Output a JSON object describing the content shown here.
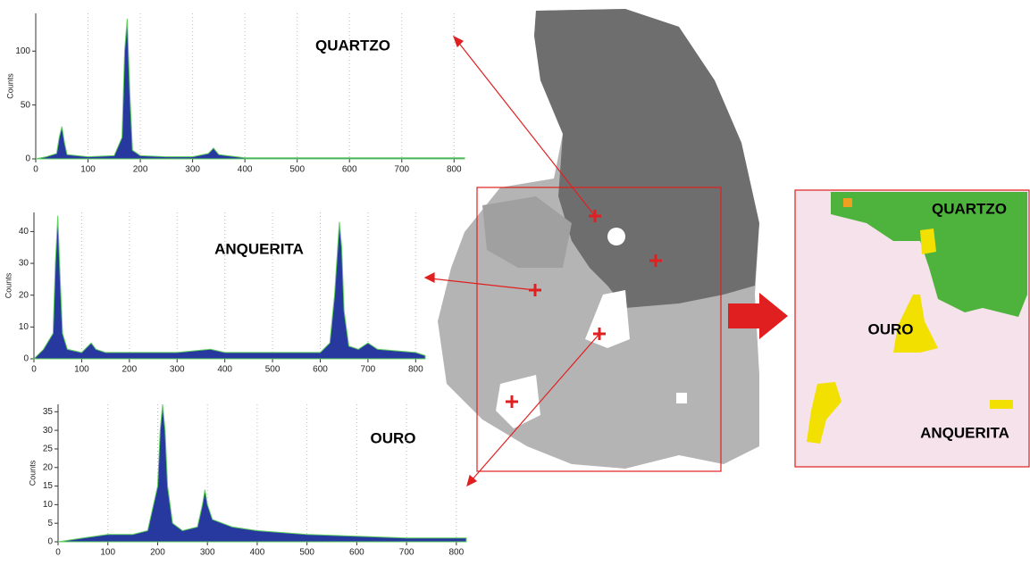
{
  "chart_data": [
    {
      "type": "area",
      "ylabel": "Counts",
      "color": "#27389e",
      "edge": "#5fcf5f",
      "grid": true,
      "x": [
        0,
        20,
        40,
        45,
        50,
        55,
        60,
        100,
        150,
        165,
        170,
        175,
        180,
        185,
        200,
        250,
        300,
        330,
        340,
        350,
        400,
        500,
        600,
        700,
        820
      ],
      "values": [
        0,
        2,
        5,
        20,
        30,
        15,
        4,
        2,
        3,
        20,
        100,
        130,
        60,
        8,
        3,
        2,
        2,
        5,
        10,
        4,
        1,
        1,
        1,
        1,
        1
      ],
      "xlim": [
        0,
        820
      ],
      "xticks": [
        0,
        100,
        200,
        300,
        400,
        500,
        600,
        700,
        800
      ],
      "ylim": [
        0,
        135
      ],
      "yticks": [
        0,
        50,
        100
      ]
    },
    {
      "type": "area",
      "ylabel": "Counts",
      "color": "#27389e",
      "edge": "#5fcf5f",
      "grid": true,
      "x": [
        0,
        20,
        40,
        45,
        50,
        55,
        60,
        70,
        100,
        120,
        130,
        150,
        200,
        300,
        370,
        400,
        500,
        600,
        620,
        630,
        640,
        645,
        650,
        660,
        680,
        700,
        720,
        800,
        820
      ],
      "values": [
        0,
        3,
        8,
        30,
        45,
        25,
        8,
        3,
        2,
        5,
        3,
        2,
        2,
        2,
        3,
        2,
        2,
        2,
        5,
        20,
        43,
        35,
        15,
        4,
        3,
        5,
        3,
        2,
        1
      ],
      "xlim": [
        0,
        820
      ],
      "xticks": [
        0,
        100,
        200,
        300,
        400,
        500,
        600,
        700,
        800
      ],
      "ylim": [
        0,
        46
      ],
      "yticks": [
        0,
        10,
        20,
        30,
        40
      ]
    },
    {
      "type": "area",
      "ylabel": "Counts",
      "color": "#27389e",
      "edge": "#5fcf5f",
      "grid": true,
      "x": [
        0,
        50,
        100,
        150,
        180,
        200,
        205,
        210,
        215,
        220,
        230,
        250,
        280,
        290,
        295,
        300,
        310,
        350,
        400,
        500,
        600,
        700,
        820
      ],
      "values": [
        0,
        1,
        2,
        2,
        3,
        15,
        30,
        37,
        30,
        15,
        5,
        3,
        4,
        10,
        14,
        10,
        6,
        4,
        3,
        2,
        1.5,
        1,
        1
      ],
      "xlim": [
        0,
        820
      ],
      "xticks": [
        0,
        100,
        200,
        300,
        400,
        500,
        600,
        700,
        800
      ],
      "ylim": [
        0,
        37
      ],
      "yticks": [
        0,
        5,
        10,
        15,
        20,
        25,
        30,
        35
      ]
    }
  ],
  "image": {
    "labels": [
      "QUARTZO",
      "ANQUERITA",
      "OURO"
    ]
  },
  "map": {
    "labels": [
      "QUARTZO",
      "OURO",
      "ANQUERITA"
    ]
  }
}
